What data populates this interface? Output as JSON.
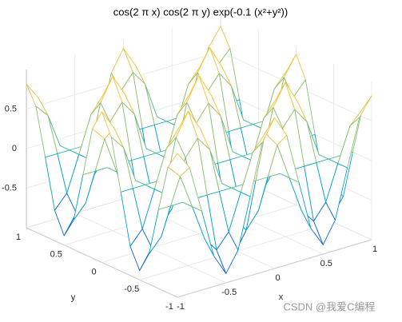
{
  "chart_data": {
    "type": "mesh",
    "title": "cos(2 π x) cos(2 π y) exp(-0.1 (x²+y²))",
    "xlabel": "x",
    "ylabel": "y",
    "x": [
      -1,
      -0.875,
      -0.75,
      -0.625,
      -0.5,
      -0.375,
      -0.25,
      -0.125,
      0,
      0.125,
      0.25,
      0.375,
      0.5,
      0.625,
      0.75,
      0.875,
      1
    ],
    "y": [
      -1,
      -0.875,
      -0.75,
      -0.625,
      -0.5,
      -0.375,
      -0.25,
      -0.125,
      0,
      0.125,
      0.25,
      0.375,
      0.5,
      0.625,
      0.75,
      0.875,
      1
    ],
    "z": [
      [
        0.819,
        0.593,
        0,
        -0.615,
        -0.882,
        -0.631,
        0,
        0.639,
        0.905,
        0.639,
        0,
        -0.631,
        -0.882,
        -0.615,
        0,
        0.593,
        0.819
      ],
      [
        0.593,
        0.429,
        0,
        -0.445,
        -0.639,
        -0.457,
        0,
        0.462,
        0.655,
        0.462,
        0,
        -0.457,
        -0.639,
        -0.445,
        0,
        0.429,
        0.593
      ],
      [
        0,
        0,
        0,
        0,
        0,
        0,
        0,
        0,
        0,
        0,
        0,
        0,
        0,
        0,
        0,
        0,
        0
      ],
      [
        -0.615,
        -0.445,
        0,
        0.462,
        0.663,
        0.474,
        0,
        -0.48,
        -0.68,
        -0.48,
        0,
        0.474,
        0.663,
        0.462,
        0,
        -0.445,
        -0.615
      ],
      [
        -0.882,
        -0.639,
        0,
        0.663,
        0.951,
        0.68,
        0,
        -0.689,
        -0.975,
        -0.689,
        0,
        0.68,
        0.951,
        0.663,
        0,
        -0.639,
        -0.882
      ],
      [
        -0.631,
        -0.457,
        0,
        0.474,
        0.68,
        0.486,
        0,
        -0.492,
        -0.697,
        -0.492,
        0,
        0.486,
        0.68,
        0.474,
        0,
        -0.457,
        -0.631
      ],
      [
        0,
        0,
        0,
        0,
        0,
        0,
        0,
        0,
        0,
        0,
        0,
        0,
        0,
        0,
        0,
        0,
        0
      ],
      [
        0.639,
        0.462,
        0,
        -0.48,
        -0.689,
        -0.492,
        0,
        0.498,
        0.706,
        0.498,
        0,
        -0.492,
        -0.689,
        -0.48,
        0,
        0.462,
        0.639
      ],
      [
        0.905,
        0.655,
        0,
        -0.68,
        -0.975,
        -0.697,
        0,
        0.706,
        1,
        0.706,
        0,
        -0.697,
        -0.975,
        -0.68,
        0,
        0.655,
        0.905
      ],
      [
        0.639,
        0.462,
        0,
        -0.48,
        -0.689,
        -0.492,
        0,
        0.498,
        0.706,
        0.498,
        0,
        -0.492,
        -0.689,
        -0.48,
        0,
        0.462,
        0.639
      ],
      [
        0,
        0,
        0,
        0,
        0,
        0,
        0,
        0,
        0,
        0,
        0,
        0,
        0,
        0,
        0,
        0,
        0
      ],
      [
        -0.631,
        -0.457,
        0,
        0.474,
        0.68,
        0.486,
        0,
        -0.492,
        -0.697,
        -0.492,
        0,
        0.486,
        0.68,
        0.474,
        0,
        -0.457,
        -0.631
      ],
      [
        -0.882,
        -0.639,
        0,
        0.663,
        0.951,
        0.68,
        0,
        -0.689,
        -0.975,
        -0.689,
        0,
        0.68,
        0.951,
        0.663,
        0,
        -0.639,
        -0.882
      ],
      [
        -0.615,
        -0.445,
        0,
        0.462,
        0.663,
        0.474,
        0,
        -0.48,
        -0.68,
        -0.48,
        0,
        0.474,
        0.663,
        0.462,
        0,
        -0.445,
        -0.615
      ],
      [
        0,
        0,
        0,
        0,
        0,
        0,
        0,
        0,
        0,
        0,
        0,
        0,
        0,
        0,
        0,
        0,
        0
      ],
      [
        0.593,
        0.429,
        0,
        -0.445,
        -0.639,
        -0.457,
        0,
        0.462,
        0.655,
        0.462,
        0,
        -0.457,
        -0.639,
        -0.445,
        0,
        0.429,
        0.593
      ],
      [
        0.819,
        0.593,
        0,
        -0.615,
        -0.882,
        -0.631,
        0,
        0.639,
        0.905,
        0.639,
        0,
        -0.631,
        -0.882,
        -0.615,
        0,
        0.593,
        0.819
      ]
    ],
    "xlim": [
      -1,
      1
    ],
    "ylim": [
      -1,
      1
    ],
    "zlim": [
      -1,
      1
    ],
    "xticks": [
      -1,
      -0.5,
      0,
      0.5,
      1
    ],
    "yticks": [
      -1,
      -0.5,
      0,
      0.5,
      1
    ],
    "zticks": [
      -0.5,
      0,
      0.5
    ],
    "grid": true,
    "colormap": [
      "#352a87",
      "#0f5cdd",
      "#1481d6",
      "#06a4ca",
      "#2eb7a4",
      "#87bf77",
      "#d1bb59",
      "#fec832",
      "#f9fb0e"
    ]
  },
  "watermark": "CSDN @我爱C编程"
}
